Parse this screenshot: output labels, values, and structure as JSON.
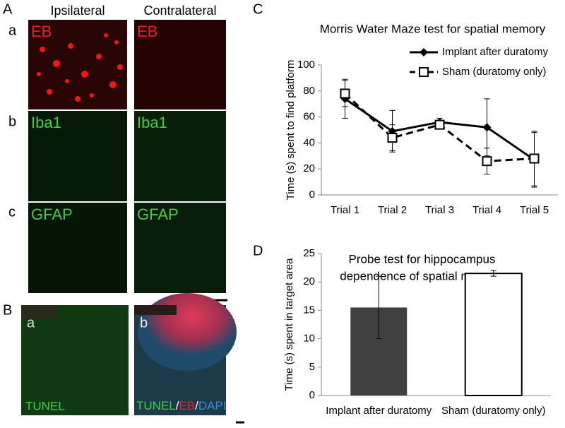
{
  "panel_A": {
    "letter": "A",
    "columns": [
      "Ipsilateral",
      "Contralateral"
    ],
    "rows": [
      {
        "letter": "a",
        "stain": "EB"
      },
      {
        "letter": "b",
        "stain": "Iba1"
      },
      {
        "letter": "c",
        "stain": "GFAP"
      }
    ]
  },
  "panel_B": {
    "letter": "B",
    "images": [
      {
        "letter": "a",
        "label": [
          "TUNEL"
        ]
      },
      {
        "letter": "b",
        "label": [
          "TUNEL",
          "/",
          "EB",
          "/",
          "DAPI"
        ]
      }
    ]
  },
  "panel_C": {
    "letter": "C"
  },
  "panel_D": {
    "letter": "D"
  },
  "chart_data": [
    {
      "type": "line",
      "title": "Morris Water Maze test for spatial memory",
      "y_label": "Time (s)  spent to find platform",
      "categories": [
        "Trial 1",
        "Trial 2",
        "Trial 3",
        "Trial 4",
        "Trial 5"
      ],
      "series": [
        {
          "name": "Implant after duratomy",
          "color": "#000000",
          "marker": "diamond",
          "dashed": false,
          "values": [
            74,
            49,
            56,
            52,
            27
          ],
          "errors": [
            15,
            16,
            3,
            22,
            21
          ]
        },
        {
          "name": "Sham (duratomy only)",
          "color": "#000000",
          "marker": "square",
          "dashed": true,
          "values": [
            78,
            44,
            54,
            26,
            28
          ],
          "errors": [
            10,
            10,
            3,
            10,
            21
          ]
        }
      ],
      "ylim": [
        0,
        100
      ],
      "yticks": [
        0,
        20,
        40,
        60,
        80,
        100
      ],
      "legend": "top-right"
    },
    {
      "type": "bar",
      "title": [
        "Probe test for hippocampus",
        "dependence  of spatial memory"
      ],
      "y_label": "Time (s) spent in target area",
      "categories": [
        "Implant after duratomy",
        "Sham (duratomy only)"
      ],
      "values": [
        15.5,
        21.5
      ],
      "errors": [
        5.5,
        0.5
      ],
      "colors": [
        "#404040",
        "#ffffff"
      ],
      "ylim": [
        0,
        25
      ],
      "yticks": [
        0,
        5,
        10,
        15,
        20,
        25
      ]
    }
  ]
}
